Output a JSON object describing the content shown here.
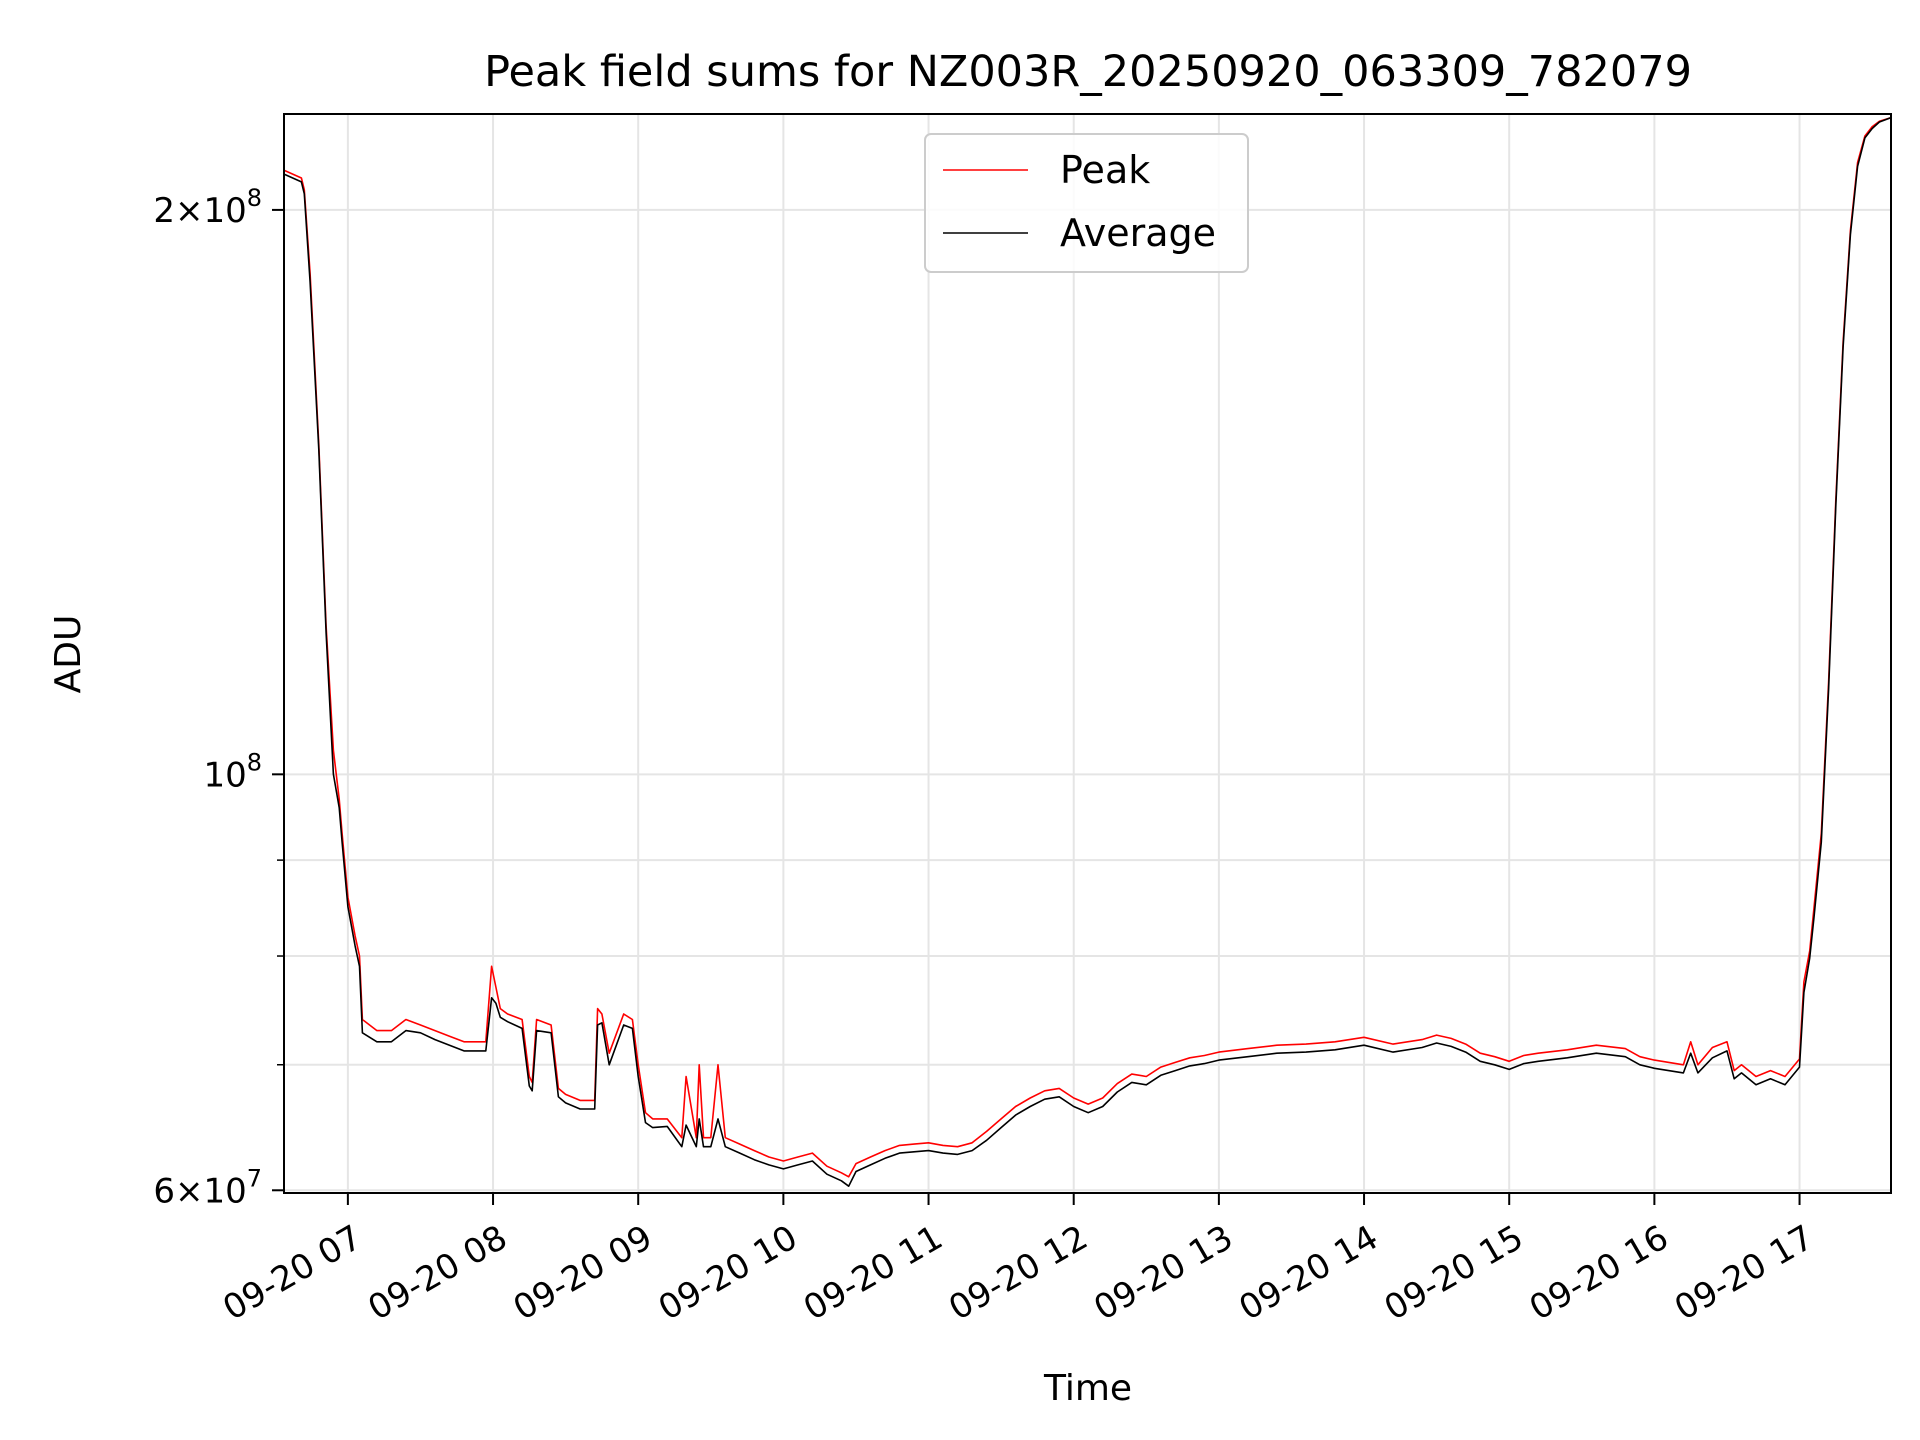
{
  "chart_data": {
    "type": "line",
    "title": "Peak field sums for NZ003R_20250920_063309_782079",
    "xlabel": "Time",
    "ylabel": "ADU",
    "x_unit": "hours (clock time on 09-20)",
    "xlim": [
      6.56,
      17.63
    ],
    "ylim": [
      59800000,
      225000000
    ],
    "yscale": "log",
    "grid": true,
    "legend_position": "top-center",
    "x_ticks": [
      {
        "value": 7,
        "label": "09-20 07"
      },
      {
        "value": 8,
        "label": "09-20 08"
      },
      {
        "value": 9,
        "label": "09-20 09"
      },
      {
        "value": 10,
        "label": "09-20 10"
      },
      {
        "value": 11,
        "label": "09-20 11"
      },
      {
        "value": 12,
        "label": "09-20 12"
      },
      {
        "value": 13,
        "label": "09-20 13"
      },
      {
        "value": 14,
        "label": "09-20 14"
      },
      {
        "value": 15,
        "label": "09-20 15"
      },
      {
        "value": 16,
        "label": "09-20 16"
      },
      {
        "value": 17,
        "label": "09-20 17"
      }
    ],
    "y_major_ticks": [
      {
        "value": 60000000,
        "base": "6×10",
        "exp": "7"
      },
      {
        "value": 100000000,
        "base": "10",
        "exp": "8"
      },
      {
        "value": 200000000,
        "base": "2×10",
        "exp": "8"
      }
    ],
    "y_minor_ticks": [
      70000000,
      80000000,
      90000000
    ],
    "series": [
      {
        "name": "Peak",
        "color": "#ff0000",
        "x": [
          6.56,
          6.68,
          6.7,
          6.74,
          6.8,
          6.85,
          6.9,
          6.94,
          6.96,
          7.0,
          7.05,
          7.08,
          7.1,
          7.2,
          7.3,
          7.4,
          7.5,
          7.6,
          7.7,
          7.8,
          7.95,
          7.99,
          8.02,
          8.05,
          8.1,
          8.2,
          8.25,
          8.27,
          8.3,
          8.4,
          8.45,
          8.5,
          8.6,
          8.7,
          8.72,
          8.75,
          8.8,
          8.9,
          8.96,
          9.0,
          9.05,
          9.1,
          9.2,
          9.3,
          9.33,
          9.4,
          9.42,
          9.45,
          9.5,
          9.55,
          9.6,
          9.7,
          9.8,
          9.9,
          10.0,
          10.1,
          10.2,
          10.3,
          10.4,
          10.45,
          10.5,
          10.6,
          10.7,
          10.8,
          10.9,
          11.0,
          11.1,
          11.2,
          11.3,
          11.4,
          11.5,
          11.6,
          11.7,
          11.8,
          11.9,
          12.0,
          12.1,
          12.2,
          12.3,
          12.4,
          12.5,
          12.6,
          12.7,
          12.8,
          12.9,
          13.0,
          13.2,
          13.4,
          13.6,
          13.8,
          14.0,
          14.2,
          14.4,
          14.5,
          14.6,
          14.7,
          14.8,
          14.9,
          15.0,
          15.1,
          15.2,
          15.4,
          15.6,
          15.8,
          15.9,
          16.0,
          16.2,
          16.25,
          16.3,
          16.4,
          16.5,
          16.55,
          16.6,
          16.7,
          16.8,
          16.9,
          17.0,
          17.03,
          17.07,
          17.1,
          17.15,
          17.2,
          17.25,
          17.3,
          17.35,
          17.4,
          17.45,
          17.5,
          17.55,
          17.63
        ],
        "y": [
          210000000,
          208000000,
          205000000,
          185000000,
          150000000,
          120000000,
          103000000,
          97000000,
          93000000,
          86000000,
          82000000,
          80000000,
          74000000,
          73000000,
          73000000,
          74000000,
          73500000,
          73000000,
          72500000,
          72000000,
          72000000,
          79000000,
          77000000,
          75000000,
          74500000,
          74000000,
          69000000,
          68500000,
          74000000,
          73500000,
          68000000,
          67500000,
          67000000,
          67000000,
          75000000,
          74500000,
          71000000,
          74500000,
          74000000,
          70000000,
          66000000,
          65500000,
          65500000,
          64000000,
          69000000,
          64000000,
          70000000,
          64000000,
          64000000,
          70000000,
          64000000,
          63500000,
          63000000,
          62500000,
          62200000,
          62500000,
          62800000,
          61800000,
          61300000,
          61000000,
          62000000,
          62500000,
          63000000,
          63400000,
          63500000,
          63600000,
          63400000,
          63300000,
          63600000,
          64500000,
          65500000,
          66500000,
          67200000,
          67800000,
          68000000,
          67200000,
          66700000,
          67200000,
          68400000,
          69200000,
          69000000,
          69800000,
          70200000,
          70600000,
          70800000,
          71100000,
          71400000,
          71700000,
          71800000,
          72000000,
          72400000,
          71800000,
          72200000,
          72600000,
          72300000,
          71800000,
          71000000,
          70700000,
          70300000,
          70800000,
          71000000,
          71300000,
          71700000,
          71400000,
          70700000,
          70400000,
          70000000,
          72000000,
          70000000,
          71500000,
          72000000,
          69500000,
          70000000,
          69000000,
          69500000,
          69000000,
          70500000,
          77500000,
          80500000,
          85000000,
          93000000,
          112000000,
          140000000,
          170000000,
          195000000,
          212000000,
          219000000,
          221500000,
          223000000,
          224000000
        ],
        "y_endpoints_note": ""
      },
      {
        "name": "Average",
        "color": "#000000",
        "x": [
          6.56,
          6.68,
          6.7,
          6.74,
          6.8,
          6.85,
          6.9,
          6.94,
          6.96,
          7.0,
          7.05,
          7.08,
          7.1,
          7.2,
          7.3,
          7.4,
          7.5,
          7.6,
          7.7,
          7.8,
          7.95,
          7.99,
          8.02,
          8.05,
          8.1,
          8.2,
          8.25,
          8.27,
          8.3,
          8.4,
          8.45,
          8.5,
          8.6,
          8.7,
          8.72,
          8.75,
          8.8,
          8.9,
          8.96,
          9.0,
          9.05,
          9.1,
          9.2,
          9.3,
          9.33,
          9.4,
          9.42,
          9.45,
          9.5,
          9.55,
          9.6,
          9.7,
          9.8,
          9.9,
          10.0,
          10.1,
          10.2,
          10.3,
          10.4,
          10.45,
          10.5,
          10.6,
          10.7,
          10.8,
          10.9,
          11.0,
          11.1,
          11.2,
          11.3,
          11.4,
          11.5,
          11.6,
          11.7,
          11.8,
          11.9,
          12.0,
          12.1,
          12.2,
          12.3,
          12.4,
          12.5,
          12.6,
          12.7,
          12.8,
          12.9,
          13.0,
          13.2,
          13.4,
          13.6,
          13.8,
          14.0,
          14.2,
          14.4,
          14.5,
          14.6,
          14.7,
          14.8,
          14.9,
          15.0,
          15.1,
          15.2,
          15.4,
          15.6,
          15.8,
          15.9,
          16.0,
          16.2,
          16.25,
          16.3,
          16.4,
          16.5,
          16.55,
          16.6,
          16.7,
          16.8,
          16.9,
          17.0,
          17.03,
          17.07,
          17.1,
          17.15,
          17.2,
          17.25,
          17.3,
          17.35,
          17.4,
          17.45,
          17.5,
          17.55,
          17.63
        ],
        "y": [
          209000000,
          207000000,
          204000000,
          183000000,
          149000000,
          119000000,
          100000000,
          96000000,
          92000000,
          85000000,
          81000000,
          79000000,
          72800000,
          72000000,
          72000000,
          73000000,
          72800000,
          72200000,
          71700000,
          71200000,
          71200000,
          76000000,
          75500000,
          74200000,
          73800000,
          73200000,
          68200000,
          67800000,
          73000000,
          72800000,
          67300000,
          66800000,
          66300000,
          66300000,
          73500000,
          73700000,
          70000000,
          73500000,
          73200000,
          69000000,
          65200000,
          64800000,
          64900000,
          63300000,
          65000000,
          63300000,
          65500000,
          63300000,
          63300000,
          65500000,
          63300000,
          62800000,
          62300000,
          61900000,
          61600000,
          61900000,
          62200000,
          61200000,
          60700000,
          60300000,
          61400000,
          61900000,
          62400000,
          62800000,
          62900000,
          63000000,
          62800000,
          62700000,
          63000000,
          63800000,
          64800000,
          65800000,
          66500000,
          67100000,
          67300000,
          66500000,
          66000000,
          66500000,
          67700000,
          68500000,
          68300000,
          69100000,
          69500000,
          69900000,
          70100000,
          70400000,
          70700000,
          71000000,
          71100000,
          71300000,
          71700000,
          71100000,
          71500000,
          71900000,
          71600000,
          71100000,
          70300000,
          70000000,
          69600000,
          70100000,
          70300000,
          70600000,
          71000000,
          70700000,
          70000000,
          69700000,
          69300000,
          71000000,
          69300000,
          70600000,
          71200000,
          68800000,
          69300000,
          68300000,
          68800000,
          68300000,
          69800000,
          76500000,
          79800000,
          84000000,
          92000000,
          111000000,
          139000000,
          169000000,
          194000000,
          211000000,
          218500000,
          221000000,
          222800000,
          224000000
        ]
      }
    ]
  }
}
